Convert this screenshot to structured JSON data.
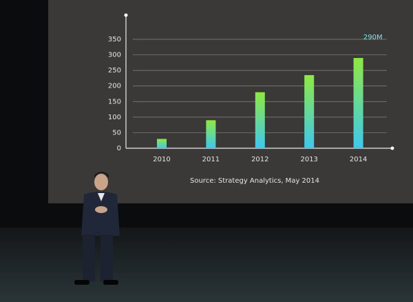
{
  "chart_data": {
    "type": "bar",
    "categories": [
      "2010",
      "2011",
      "2012",
      "2013",
      "2014"
    ],
    "values": [
      30,
      90,
      180,
      235,
      290
    ],
    "value_labels": [
      null,
      null,
      null,
      null,
      "290M"
    ],
    "color": "#3fc8ee",
    "color_top": "#8ee842",
    "ylim": [
      0,
      350
    ],
    "yticks": [
      0,
      50,
      100,
      150,
      200,
      250,
      300,
      350
    ],
    "grid": true,
    "source": "Source: Strategy Analytics, May 2014"
  }
}
